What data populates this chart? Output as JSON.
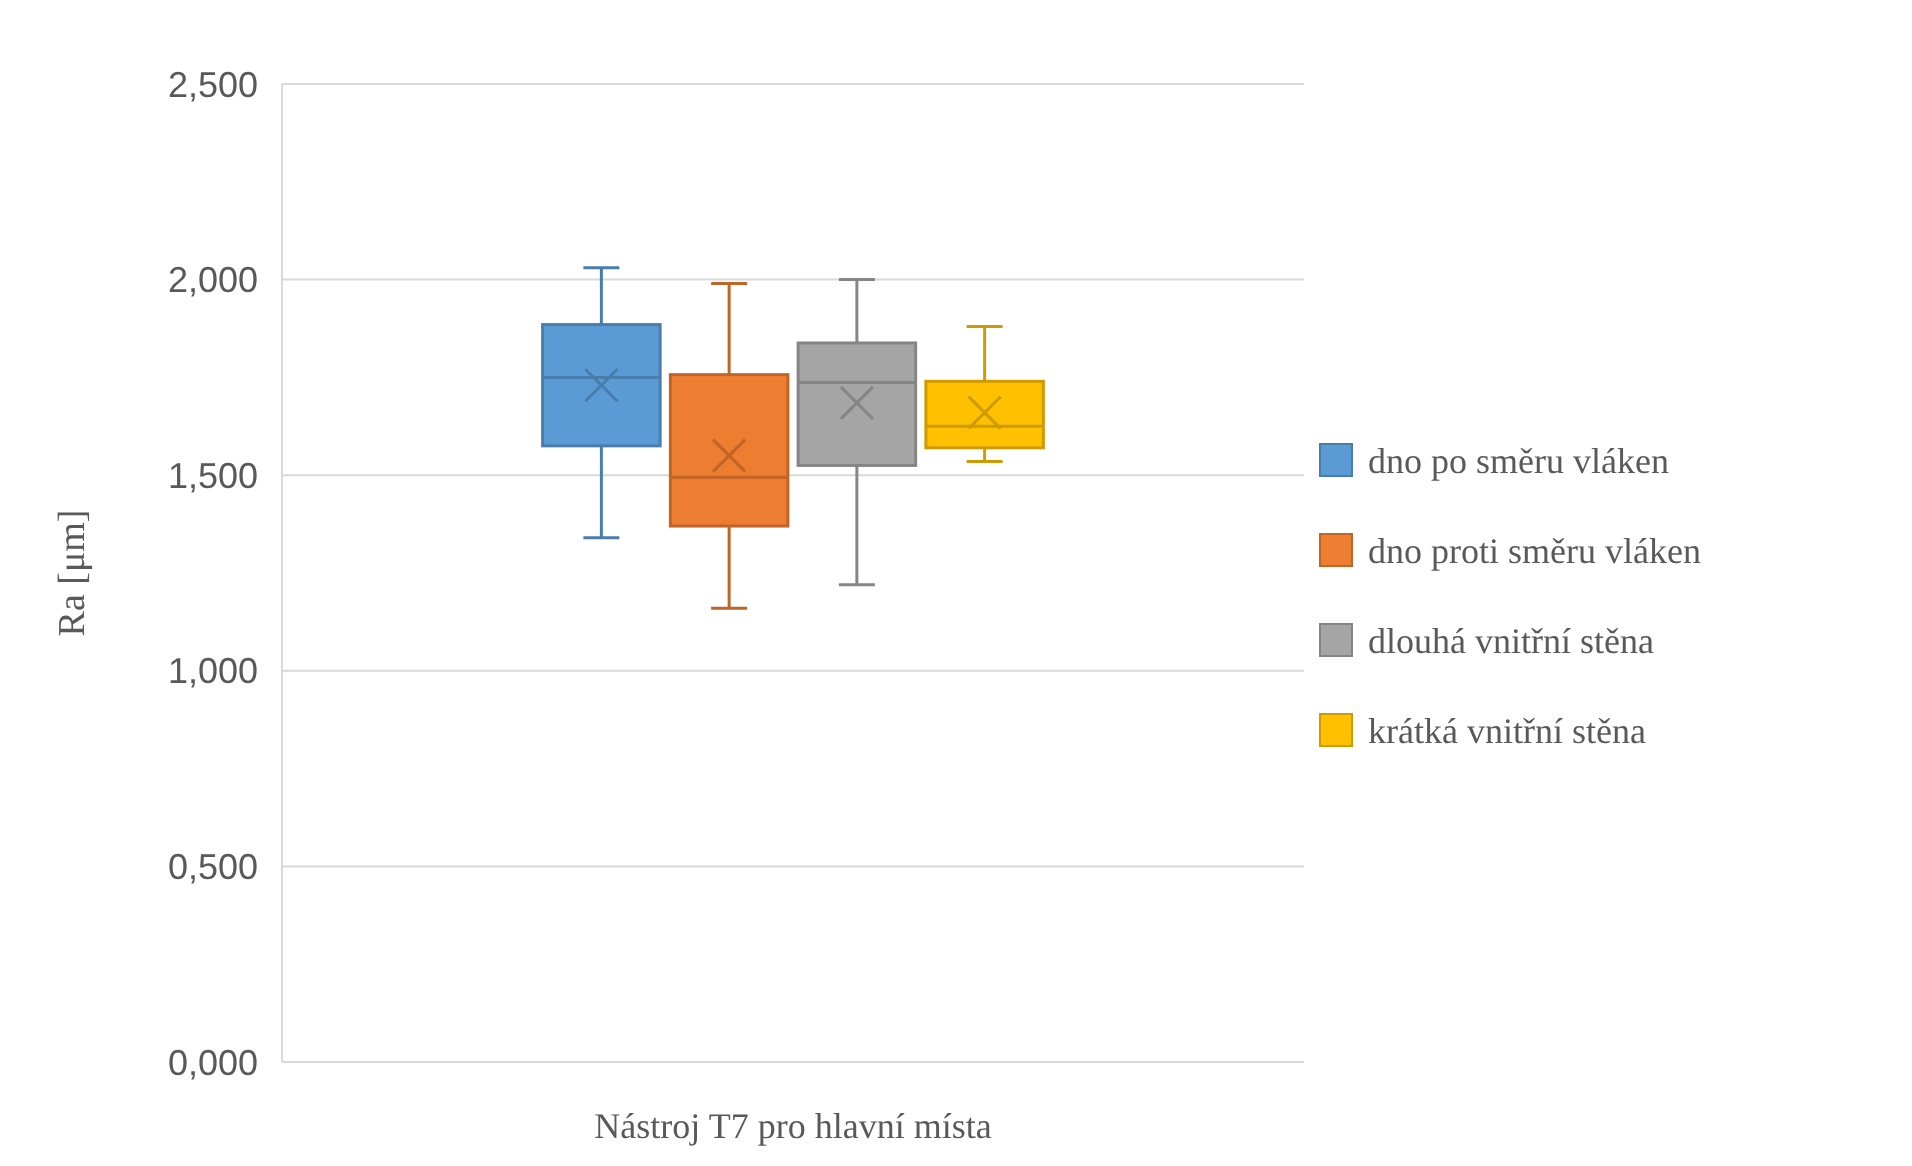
{
  "chart_data": {
    "type": "box",
    "ylabel": "Ra [μm]",
    "categories": [
      "Nástroj T7 pro hlavní místa"
    ],
    "ylim": [
      0,
      2.5
    ],
    "yticks": [
      {
        "value": 0,
        "label": "0,000"
      },
      {
        "value": 0.5,
        "label": "0,500"
      },
      {
        "value": 1,
        "label": "1,000"
      },
      {
        "value": 1.5,
        "label": "1,500"
      },
      {
        "value": 2,
        "label": "2,000"
      },
      {
        "value": 2.5,
        "label": "2,500"
      }
    ],
    "grid": "y",
    "legend": "right",
    "marker": "cross",
    "series": [
      {
        "name": "dno po směru vláken",
        "color": "#5b9bd5",
        "boxes": [
          {
            "low": 1.34,
            "q1": 1.575,
            "median": 1.75,
            "q3": 1.885,
            "high": 2.03,
            "mean": 1.73
          }
        ]
      },
      {
        "name": "dno proti směru vláken",
        "color": "#ed7d31",
        "boxes": [
          {
            "low": 1.16,
            "q1": 1.37,
            "median": 1.495,
            "q3": 1.757,
            "high": 1.99,
            "mean": 1.55
          }
        ]
      },
      {
        "name": "dlouhá vnitřní stěna",
        "color": "#a5a5a5",
        "boxes": [
          {
            "low": 1.22,
            "q1": 1.525,
            "median": 1.737,
            "q3": 1.838,
            "high": 2.0,
            "mean": 1.685
          }
        ]
      },
      {
        "name": "krátká vnitřní stěna",
        "color": "#ffc000",
        "boxes": [
          {
            "low": 1.535,
            "q1": 1.57,
            "median": 1.625,
            "q3": 1.74,
            "high": 1.88,
            "mean": 1.66
          }
        ]
      }
    ]
  }
}
